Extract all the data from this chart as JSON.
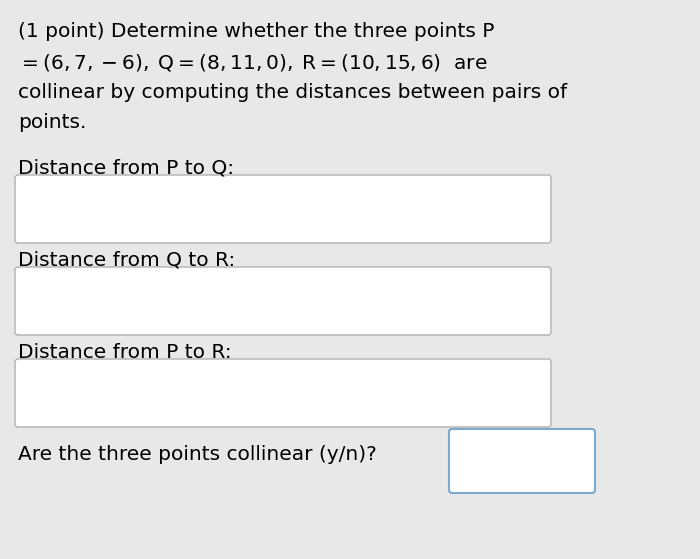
{
  "background_color": "#e8e8e8",
  "text_color": "#000000",
  "title_line1": "(1 point) Determine whether the three points P",
  "title_line3": "collinear by computing the distances between pairs of",
  "title_line4": "points.",
  "label1": "Distance from P to Q:",
  "label2": "Distance from Q to R:",
  "label3": "Distance from P to R:",
  "label4": "Are the three points collinear (y/n)?",
  "box_bg": "#ffffff",
  "box_border_gray": "#b0b0b0",
  "box_border_blue": "#7aaad0",
  "font_size": 14.5,
  "fig_w": 7.0,
  "fig_h": 5.59,
  "dpi": 100
}
